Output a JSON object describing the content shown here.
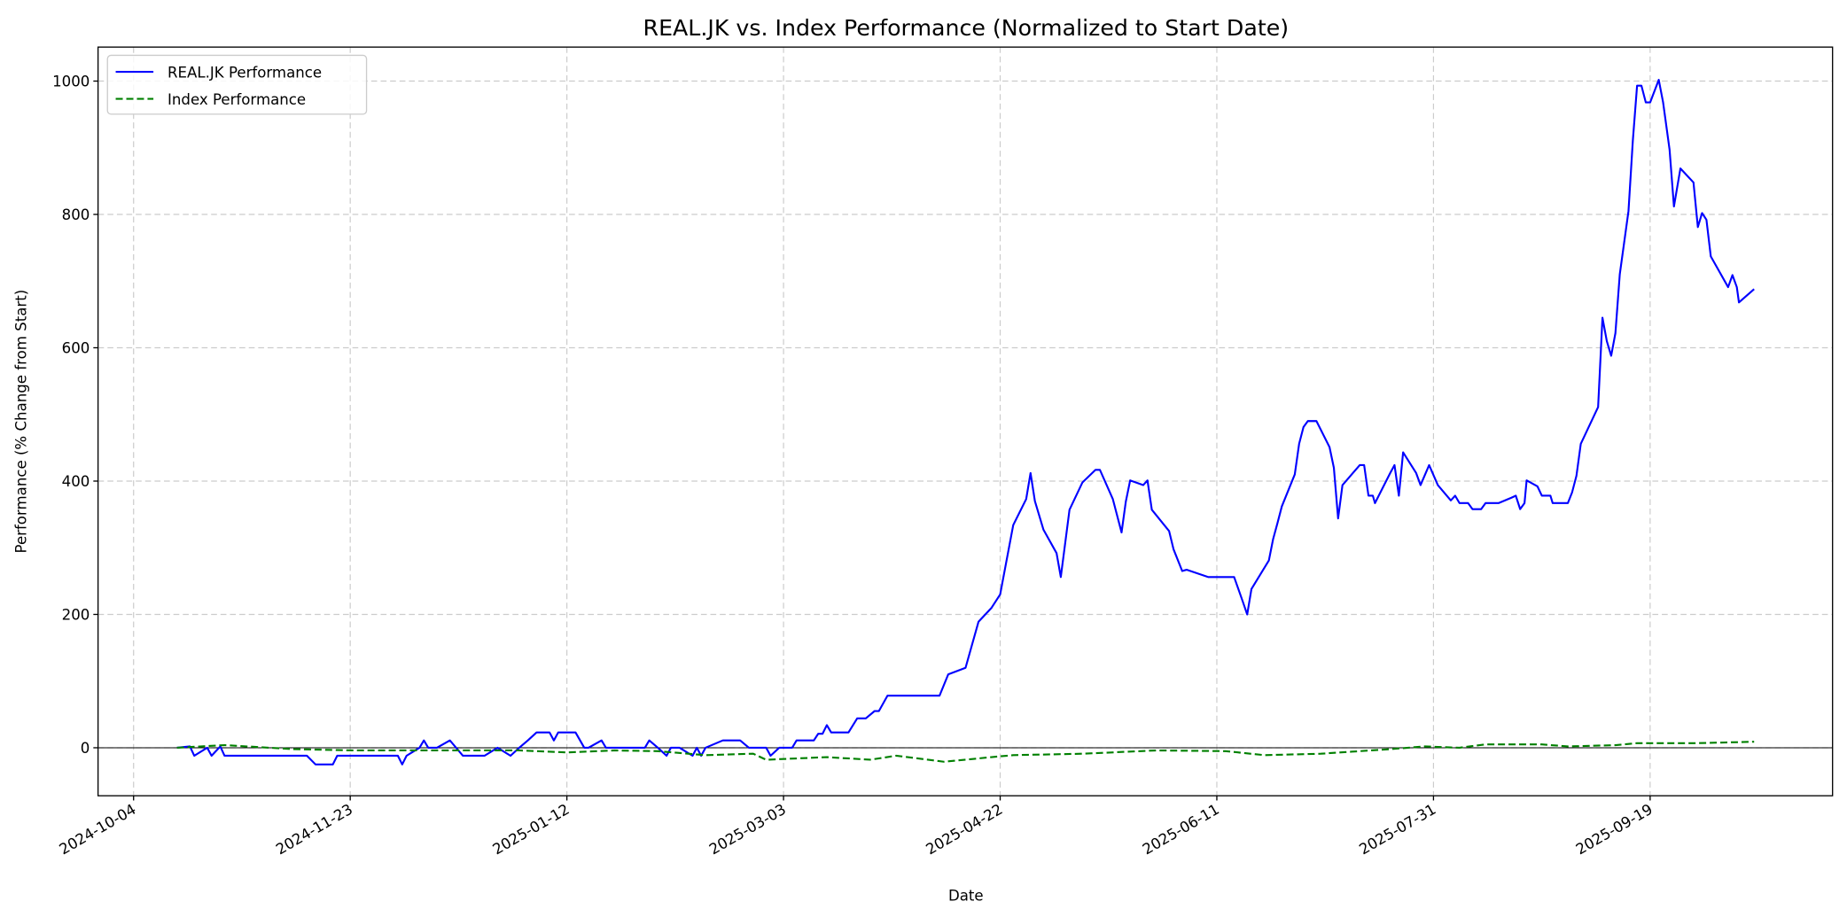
{
  "chart_data": {
    "type": "line",
    "title": "REAL.JK vs. Index Performance (Normalized to Start Date)",
    "xlabel": "Date",
    "ylabel": "Performance (% Change from Start)",
    "x_units": "days since 2024-10-04",
    "xlim": [
      -8.2,
      392.1
    ],
    "ylim": [
      -72,
      1051
    ],
    "grid": true,
    "legend_position": "top-left",
    "x_ticks": [
      {
        "day": 0,
        "label": "2024-10-04"
      },
      {
        "day": 50,
        "label": "2024-11-23"
      },
      {
        "day": 100,
        "label": "2025-01-12"
      },
      {
        "day": 150,
        "label": "2025-03-03"
      },
      {
        "day": 200,
        "label": "2025-04-22"
      },
      {
        "day": 250,
        "label": "2025-06-11"
      },
      {
        "day": 300,
        "label": "2025-07-31"
      },
      {
        "day": 350,
        "label": "2025-09-19"
      }
    ],
    "y_ticks": [
      {
        "value": 0,
        "label": "0"
      },
      {
        "value": 200,
        "label": "200"
      },
      {
        "value": 400,
        "label": "400"
      },
      {
        "value": 600,
        "label": "600"
      },
      {
        "value": 800,
        "label": "800"
      },
      {
        "value": 1000,
        "label": "1000"
      }
    ],
    "series": [
      {
        "name": "REAL.JK Performance",
        "color": "#0000ff",
        "style": "solid",
        "points": [
          [
            10,
            0
          ],
          [
            13,
            2
          ],
          [
            14,
            -12
          ],
          [
            17,
            0
          ],
          [
            18,
            -12
          ],
          [
            20,
            2
          ],
          [
            21,
            -12
          ],
          [
            40,
            -12
          ],
          [
            42,
            -25
          ],
          [
            46,
            -25
          ],
          [
            47,
            -12
          ],
          [
            61,
            -12
          ],
          [
            62,
            -25
          ],
          [
            63,
            -12
          ],
          [
            66,
            0
          ],
          [
            67,
            11
          ],
          [
            68,
            0
          ],
          [
            70,
            0
          ],
          [
            73,
            11
          ],
          [
            76,
            -12
          ],
          [
            81,
            -12
          ],
          [
            84,
            0
          ],
          [
            87,
            -12
          ],
          [
            89,
            0
          ],
          [
            91,
            11
          ],
          [
            93,
            23
          ],
          [
            96,
            23
          ],
          [
            97,
            11
          ],
          [
            98,
            23
          ],
          [
            102,
            23
          ],
          [
            104,
            0
          ],
          [
            105,
            0
          ],
          [
            108,
            11
          ],
          [
            109,
            0
          ],
          [
            118,
            0
          ],
          [
            119,
            11
          ],
          [
            121,
            0
          ],
          [
            123,
            -12
          ],
          [
            124,
            0
          ],
          [
            126,
            0
          ],
          [
            129,
            -12
          ],
          [
            130,
            0
          ],
          [
            131,
            -12
          ],
          [
            132,
            0
          ],
          [
            136,
            11
          ],
          [
            140,
            11
          ],
          [
            142,
            0
          ],
          [
            146,
            0
          ],
          [
            147,
            -12
          ],
          [
            149,
            0
          ],
          [
            152,
            0
          ],
          [
            153,
            11
          ],
          [
            157,
            11
          ],
          [
            158,
            21
          ],
          [
            159,
            21
          ],
          [
            160,
            34
          ],
          [
            161,
            23
          ],
          [
            165,
            23
          ],
          [
            167,
            44
          ],
          [
            169,
            44
          ],
          [
            171,
            55
          ],
          [
            172,
            55
          ],
          [
            174,
            78
          ],
          [
            186,
            78
          ],
          [
            188,
            110
          ],
          [
            192,
            120
          ],
          [
            195,
            189
          ],
          [
            198,
            210
          ],
          [
            200,
            230
          ],
          [
            203,
            334
          ],
          [
            206,
            373
          ],
          [
            207,
            412
          ],
          [
            208,
            370
          ],
          [
            210,
            327
          ],
          [
            213,
            292
          ],
          [
            214,
            256
          ],
          [
            216,
            357
          ],
          [
            219,
            398
          ],
          [
            222,
            417
          ],
          [
            223,
            417
          ],
          [
            226,
            373
          ],
          [
            228,
            323
          ],
          [
            229,
            369
          ],
          [
            230,
            401
          ],
          [
            233,
            394
          ],
          [
            234,
            401
          ],
          [
            235,
            357
          ],
          [
            239,
            325
          ],
          [
            240,
            298
          ],
          [
            242,
            265
          ],
          [
            243,
            267
          ],
          [
            248,
            256
          ],
          [
            254,
            256
          ],
          [
            256,
            219
          ],
          [
            257,
            200
          ],
          [
            258,
            238
          ],
          [
            262,
            281
          ],
          [
            263,
            313
          ],
          [
            264,
            337
          ],
          [
            265,
            362
          ],
          [
            268,
            410
          ],
          [
            269,
            456
          ],
          [
            270,
            481
          ],
          [
            271,
            490
          ],
          [
            273,
            490
          ],
          [
            276,
            451
          ],
          [
            277,
            420
          ],
          [
            278,
            344
          ],
          [
            279,
            394
          ],
          [
            283,
            424
          ],
          [
            284,
            424
          ],
          [
            285,
            378
          ],
          [
            286,
            378
          ],
          [
            286.5,
            367
          ],
          [
            290,
            412
          ],
          [
            291,
            424
          ],
          [
            292,
            378
          ],
          [
            293,
            443
          ],
          [
            296,
            412
          ],
          [
            297,
            394
          ],
          [
            299,
            424
          ],
          [
            301,
            394
          ],
          [
            304,
            371
          ],
          [
            305,
            378
          ],
          [
            306,
            367
          ],
          [
            308,
            367
          ],
          [
            309,
            358
          ],
          [
            311,
            358
          ],
          [
            312,
            367
          ],
          [
            315,
            367
          ],
          [
            318,
            375
          ],
          [
            319,
            378
          ],
          [
            320,
            358
          ],
          [
            321,
            367
          ],
          [
            321.5,
            401
          ],
          [
            324,
            392
          ],
          [
            325,
            378
          ],
          [
            327,
            378
          ],
          [
            327.5,
            367
          ],
          [
            331,
            367
          ],
          [
            332,
            383
          ],
          [
            333,
            408
          ],
          [
            334,
            456
          ],
          [
            338,
            511
          ],
          [
            339,
            645
          ],
          [
            340,
            610
          ],
          [
            341,
            588
          ],
          [
            342,
            622
          ],
          [
            343,
            710
          ],
          [
            345,
            805
          ],
          [
            346,
            911
          ],
          [
            347,
            993
          ],
          [
            348,
            993
          ],
          [
            349,
            968
          ],
          [
            350,
            968
          ],
          [
            352,
            1002
          ],
          [
            353,
            968
          ],
          [
            354.5,
            897
          ],
          [
            355.5,
            812
          ],
          [
            357,
            869
          ],
          [
            360,
            848
          ],
          [
            361,
            781
          ],
          [
            362,
            802
          ],
          [
            363,
            792
          ],
          [
            364,
            737
          ],
          [
            368,
            691
          ],
          [
            369,
            709
          ],
          [
            370,
            691
          ],
          [
            370.5,
            668
          ],
          [
            374,
            688
          ]
        ]
      },
      {
        "name": "Index Performance",
        "color": "#008000",
        "style": "dashed",
        "points": [
          [
            10,
            0
          ],
          [
            21,
            4
          ],
          [
            37,
            -2
          ],
          [
            51,
            -4
          ],
          [
            62,
            -4
          ],
          [
            89,
            -4
          ],
          [
            100,
            -7
          ],
          [
            111,
            -4
          ],
          [
            121,
            -5
          ],
          [
            132,
            -11
          ],
          [
            143,
            -9
          ],
          [
            146,
            -18
          ],
          [
            160,
            -14
          ],
          [
            170,
            -18
          ],
          [
            176,
            -12
          ],
          [
            187,
            -21
          ],
          [
            198,
            -14
          ],
          [
            203,
            -11
          ],
          [
            219,
            -9
          ],
          [
            236,
            -4
          ],
          [
            252,
            -5
          ],
          [
            261,
            -11
          ],
          [
            274,
            -9
          ],
          [
            290,
            -2
          ],
          [
            298,
            2
          ],
          [
            306,
            0
          ],
          [
            312,
            5
          ],
          [
            325,
            5
          ],
          [
            331,
            2
          ],
          [
            342,
            4
          ],
          [
            347,
            7
          ],
          [
            361,
            7
          ],
          [
            374,
            9
          ]
        ]
      }
    ]
  }
}
